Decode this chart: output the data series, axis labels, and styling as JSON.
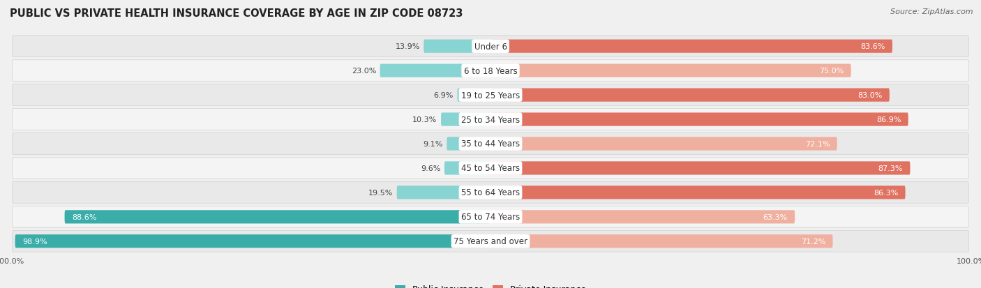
{
  "title": "PUBLIC VS PRIVATE HEALTH INSURANCE COVERAGE BY AGE IN ZIP CODE 08723",
  "source": "Source: ZipAtlas.com",
  "categories": [
    "Under 6",
    "6 to 18 Years",
    "19 to 25 Years",
    "25 to 34 Years",
    "35 to 44 Years",
    "45 to 54 Years",
    "55 to 64 Years",
    "65 to 74 Years",
    "75 Years and over"
  ],
  "public_values": [
    13.9,
    23.0,
    6.9,
    10.3,
    9.1,
    9.6,
    19.5,
    88.6,
    98.9
  ],
  "private_values": [
    83.6,
    75.0,
    83.0,
    86.9,
    72.1,
    87.3,
    86.3,
    63.3,
    71.2
  ],
  "public_color_dark": "#3aada9",
  "public_color_light": "#87d4d2",
  "private_color_dark": "#e07262",
  "private_color_light": "#f0b0a0",
  "row_bg_odd": "#e9e9e9",
  "row_bg_even": "#f4f4f4",
  "bg_color": "#f0f0f0",
  "title_fontsize": 10.5,
  "cat_fontsize": 8.5,
  "val_fontsize": 8.0,
  "legend_fontsize": 9,
  "source_fontsize": 8,
  "pub_threshold": 50,
  "priv_threshold": 80
}
